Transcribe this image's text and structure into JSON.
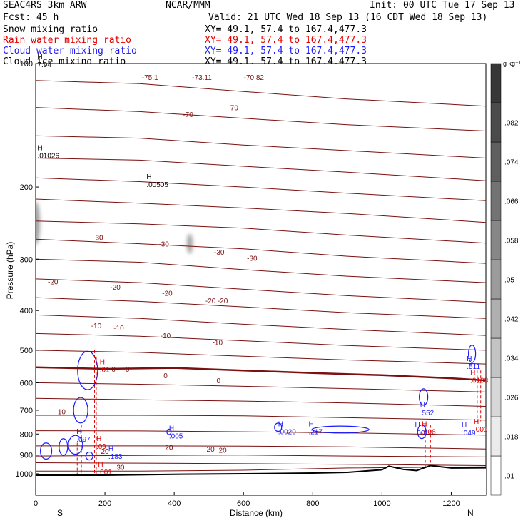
{
  "header": {
    "model": "SEAC4RS  3km ARW",
    "org": "NCAR/MMM",
    "init": "Init: 00 UTC Tue 17 Sep 13",
    "fcst": "Fcst:   45 h",
    "valid": "Valid: 21 UTC Wed 18 Sep 13 (16 CDT Wed 18 Sep 13)",
    "fields": [
      {
        "name": "Snow mixing ratio",
        "xy": "XY=  49.1, 57.4 to 167.4,477.3",
        "color": "#000000"
      },
      {
        "name": "Rain water mixing ratio",
        "xy": "XY=  49.1, 57.4 to 167.4,477.3",
        "color": "#e00000"
      },
      {
        "name": "Cloud water mixing ratio",
        "xy": "XY=  49.1, 57.4 to 167.4,477.3",
        "color": "#1a1aff"
      },
      {
        "name": "Cloud ice mixing ratio",
        "xy": "XY=  49.1, 57.4 to 167.4,477.3",
        "color": "#000000"
      }
    ]
  },
  "chart_data": {
    "type": "cross-section",
    "xlabel": "Distance (km)",
    "ylabel": "Pressure (hPa)",
    "xlim": [
      0,
      1300
    ],
    "ylim": [
      1050,
      100
    ],
    "yscale": "log",
    "xticks": [
      0,
      200,
      400,
      600,
      800,
      1000,
      1200
    ],
    "yticks": [
      100,
      200,
      300,
      400,
      500,
      600,
      700,
      800,
      900,
      1000
    ],
    "x_end_labels": {
      "left": "S",
      "right": "N"
    },
    "temperature_contour_labels": [
      "-75.1",
      "-73.11",
      "-70.82",
      "-70",
      "-30",
      "-20",
      "-10",
      "0",
      "10",
      "20",
      "30"
    ],
    "zero_isotherm_pressure": [
      [
        0,
        550
      ],
      [
        200,
        555
      ],
      [
        400,
        552
      ],
      [
        600,
        560
      ],
      [
        800,
        568
      ],
      [
        1000,
        575
      ],
      [
        1200,
        585
      ],
      [
        1300,
        592
      ]
    ],
    "terrain_pressure": [
      [
        0,
        1008
      ],
      [
        200,
        1008
      ],
      [
        400,
        1003
      ],
      [
        600,
        1000
      ],
      [
        800,
        996
      ],
      [
        900,
        992
      ],
      [
        1000,
        978
      ],
      [
        1020,
        958
      ],
      [
        1060,
        975
      ],
      [
        1100,
        982
      ],
      [
        1140,
        955
      ],
      [
        1200,
        968
      ],
      [
        1300,
        967
      ]
    ],
    "maxima_labels": [
      {
        "field": "snow",
        "text": ".01026"
      },
      {
        "field": "snow",
        "text": ".00505"
      },
      {
        "field": "cloud_ice",
        "text": "7.94"
      },
      {
        "field": "cloud_water",
        "text": ".511"
      },
      {
        "field": "rain",
        "text": ".0108"
      },
      {
        "field": "rain",
        "text": ".001"
      },
      {
        "field": "cloud_water",
        "text": ".552"
      },
      {
        "field": "cloud_water",
        "text": ".001"
      },
      {
        "field": "rain",
        "text": ".008"
      },
      {
        "field": "cloud_water",
        "text": ".049"
      },
      {
        "field": "cloud_water",
        "text": ".217"
      },
      {
        "field": "cloud_water",
        "text": ".0020"
      },
      {
        "field": "cloud_water",
        "text": ".005"
      },
      {
        "field": "cloud_water",
        "text": ".183"
      },
      {
        "field": "cloud_water",
        "text": ".097"
      },
      {
        "field": "rain",
        "text": ".09"
      },
      {
        "field": "rain",
        "text": ".001"
      },
      {
        "field": "rain",
        "text": ".01"
      }
    ],
    "colorbar": {
      "unit": "g kg⁻¹",
      "levels": [
        ".01",
        ".018",
        ".026",
        ".034",
        ".042",
        ".05",
        ".058",
        ".066",
        ".074",
        ".082"
      ]
    }
  }
}
